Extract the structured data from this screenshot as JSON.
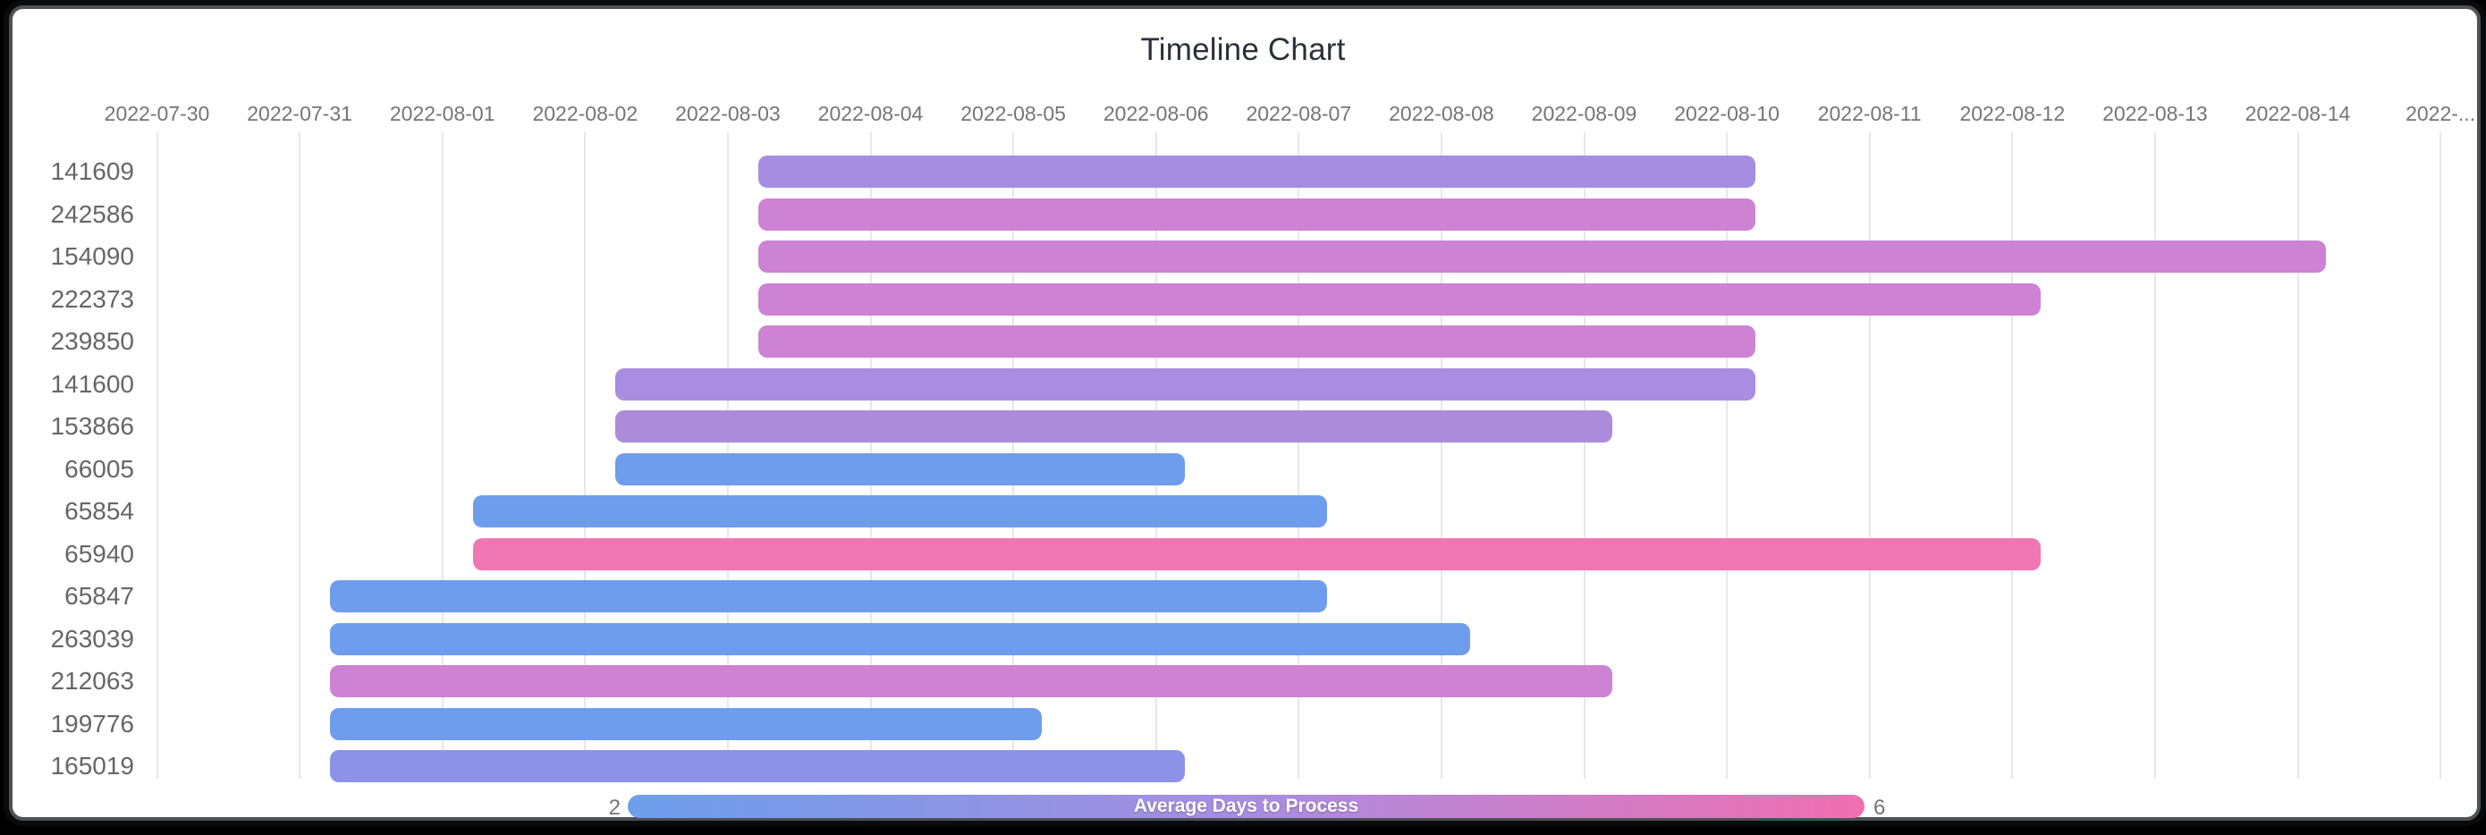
{
  "window": {
    "background": "#000000",
    "card_background": "#ffffff",
    "card_border": "#4e5256"
  },
  "chart_data": {
    "type": "bar",
    "variant": "timeline-gantt",
    "title": "Timeline Chart",
    "title_color": "#2b313a",
    "grid": true,
    "x_axis": {
      "start_date": "2022-07-30",
      "tick_labels": [
        "2022-07-30",
        "2022-07-31",
        "2022-08-01",
        "2022-08-02",
        "2022-08-03",
        "2022-08-04",
        "2022-08-05",
        "2022-08-06",
        "2022-08-07",
        "2022-08-08",
        "2022-08-09",
        "2022-08-10",
        "2022-08-11",
        "2022-08-12",
        "2022-08-13",
        "2022-08-14",
        "2022-..."
      ],
      "tick_color": "#757575",
      "gridline_color": "#e7e7e7"
    },
    "y_axis": {
      "label_color": "#666666",
      "categories": [
        "141609",
        "242586",
        "154090",
        "222373",
        "239850",
        "141600",
        "153866",
        "66005",
        "65854",
        "65940",
        "65847",
        "263039",
        "212063",
        "199776",
        "165019"
      ]
    },
    "rows": [
      {
        "label": "141609",
        "start": "2022-08-03",
        "end": "2022-08-10",
        "color": "#a58de2"
      },
      {
        "label": "242586",
        "start": "2022-08-03",
        "end": "2022-08-10",
        "color": "#cd82d4"
      },
      {
        "label": "154090",
        "start": "2022-08-03",
        "end": "2022-08-14",
        "color": "#cd82d4"
      },
      {
        "label": "222373",
        "start": "2022-08-03",
        "end": "2022-08-12",
        "color": "#cd82d4"
      },
      {
        "label": "239850",
        "start": "2022-08-03",
        "end": "2022-08-10",
        "color": "#cd82d4"
      },
      {
        "label": "141600",
        "start": "2022-08-02",
        "end": "2022-08-10",
        "color": "#a98de0"
      },
      {
        "label": "153866",
        "start": "2022-08-02",
        "end": "2022-08-09",
        "color": "#ac8cda"
      },
      {
        "label": "66005",
        "start": "2022-08-02",
        "end": "2022-08-06",
        "color": "#6f9ded"
      },
      {
        "label": "65854",
        "start": "2022-08-01",
        "end": "2022-08-07",
        "color": "#6f9ded"
      },
      {
        "label": "65940",
        "start": "2022-08-01",
        "end": "2022-08-12",
        "color": "#f177b2"
      },
      {
        "label": "65847",
        "start": "2022-07-31",
        "end": "2022-08-07",
        "color": "#6f9ded"
      },
      {
        "label": "263039",
        "start": "2022-07-31",
        "end": "2022-08-08",
        "color": "#6f9ded"
      },
      {
        "label": "212063",
        "start": "2022-07-31",
        "end": "2022-08-09",
        "color": "#cd82d4"
      },
      {
        "label": "199776",
        "start": "2022-07-31",
        "end": "2022-08-05",
        "color": "#6f9ded"
      },
      {
        "label": "165019",
        "start": "2022-07-31",
        "end": "2022-08-06",
        "color": "#8b92e8"
      }
    ],
    "legend": {
      "label": "Average Days to Process",
      "min": "2",
      "max": "6",
      "gradient": [
        "#6d9eec",
        "#a88de0",
        "#f16fb0"
      ],
      "number_color": "#757575",
      "text_color": "#ffffff",
      "position": "bottom"
    }
  }
}
